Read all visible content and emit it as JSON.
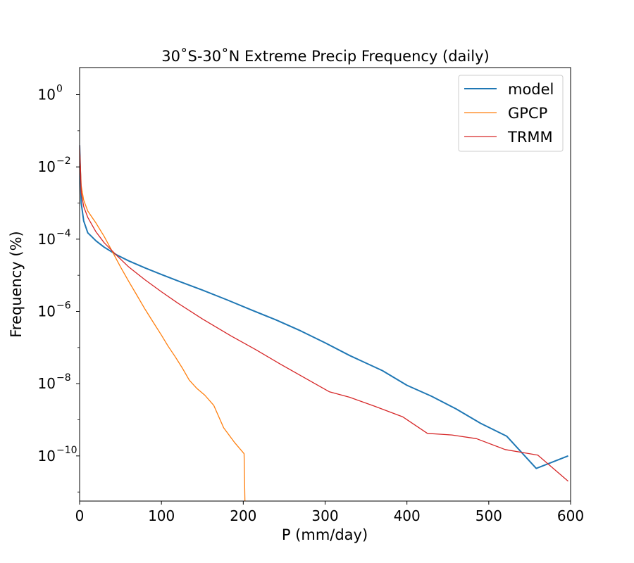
{
  "chart_data": {
    "type": "line",
    "title": "30˚S-30˚N Extreme Precip Frequency (daily)",
    "xlabel": "P (mm/day)",
    "ylabel": "Frequency (%)",
    "xlim": [
      0,
      600
    ],
    "ylim_log10": [
      -11.25,
      0.75
    ],
    "yscale": "log",
    "grid": false,
    "legend_position": "upper-right",
    "x_ticks": [
      0,
      100,
      200,
      300,
      400,
      500,
      600
    ],
    "y_ticks": [
      {
        "mantissa": "10",
        "exponent": "0",
        "log10": 0
      },
      {
        "mantissa": "10",
        "exponent": "−2",
        "log10": -2
      },
      {
        "mantissa": "10",
        "exponent": "−4",
        "log10": -4
      },
      {
        "mantissa": "10",
        "exponent": "−6",
        "log10": -6
      },
      {
        "mantissa": "10",
        "exponent": "−8",
        "log10": -8
      },
      {
        "mantissa": "10",
        "exponent": "−10",
        "log10": -10
      }
    ],
    "series": [
      {
        "name": "model",
        "color": "#1f77b4",
        "x": [
          0,
          2,
          5,
          10,
          20,
          30,
          45,
          60,
          80,
          100,
          120,
          150,
          180,
          210,
          240,
          270,
          300,
          330,
          370,
          400,
          430,
          460,
          490,
          522,
          558,
          597
        ],
        "y": [
          0.04,
          0.001,
          0.00032,
          0.00015,
          9e-05,
          6e-05,
          3.7e-05,
          2.5e-05,
          1.6e-05,
          1.05e-05,
          7e-06,
          3.9e-06,
          2.1e-06,
          1.1e-06,
          5.8e-07,
          2.9e-07,
          1.35e-07,
          6e-08,
          2.3e-08,
          9e-09,
          4.5e-09,
          2e-09,
          8e-10,
          3.5e-10,
          4.5e-11,
          1e-10
        ]
      },
      {
        "name": "GPCP",
        "color": "#ff7f0e",
        "x": [
          0,
          2,
          5,
          10,
          20,
          30,
          40,
          50,
          60,
          70,
          80,
          90,
          100,
          108,
          117,
          126,
          134,
          143,
          153,
          164,
          176,
          189,
          201,
          202,
          202
        ],
        "y": [
          0.03,
          0.003,
          0.0012,
          0.0006,
          0.00028,
          0.00012,
          4.5e-05,
          1.7e-05,
          6.8e-06,
          2.8e-06,
          1.15e-06,
          5e-07,
          2.2e-07,
          1.1e-07,
          5.5e-08,
          2.6e-08,
          1.25e-08,
          7.5e-09,
          4.8e-09,
          2.5e-09,
          6e-10,
          2.4e-10,
          1.15e-10,
          5e-12,
          2e-12
        ]
      },
      {
        "name": "TRMM",
        "color": "#d62728",
        "x": [
          0,
          2,
          5,
          10,
          20,
          30,
          45,
          60,
          80,
          100,
          120,
          150,
          185,
          215,
          245,
          280,
          305,
          330,
          360,
          395,
          425,
          455,
          485,
          520,
          560,
          597
        ],
        "y": [
          0.04,
          0.002,
          0.0008,
          0.0004,
          0.00016,
          8e-05,
          3.6e-05,
          1.7e-05,
          7.5e-06,
          3.5e-06,
          1.7e-06,
          6.2e-07,
          2.1e-07,
          8.8e-08,
          3.5e-08,
          1.25e-08,
          6e-09,
          4.2e-09,
          2.4e-09,
          1.2e-09,
          4.2e-10,
          3.8e-10,
          3e-10,
          1.5e-10,
          1.05e-10,
          2e-11
        ]
      }
    ]
  }
}
